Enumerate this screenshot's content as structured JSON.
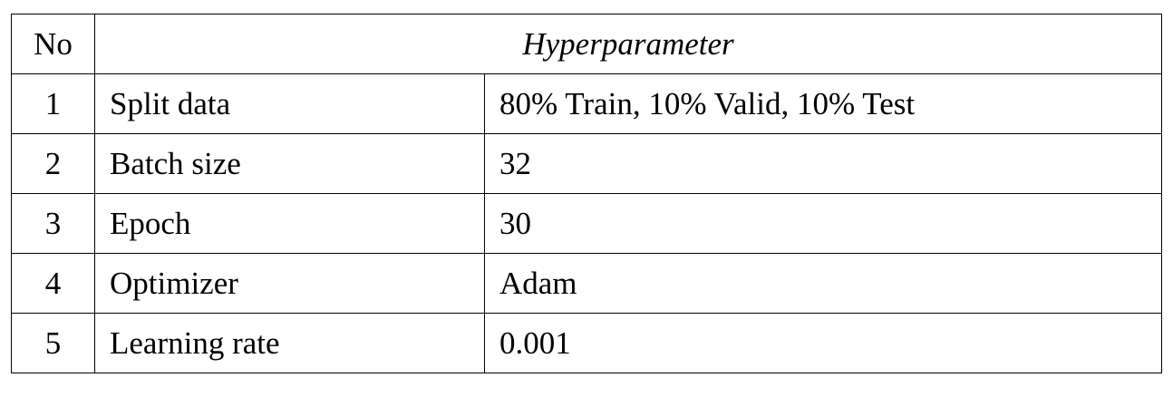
{
  "table": {
    "header": {
      "no_label": "No",
      "param_label": "Hyperparameter"
    },
    "rows": [
      {
        "no": "1",
        "name": "Split data",
        "value": "80% Train, 10% Valid, 10% Test"
      },
      {
        "no": "2",
        "name": "Batch size",
        "value": "32"
      },
      {
        "no": "3",
        "name": "Epoch",
        "value": "30"
      },
      {
        "no": "4",
        "name": "Optimizer",
        "value": "Adam"
      },
      {
        "no": "5",
        "name": "Learning rate",
        "value": "0.001"
      }
    ]
  }
}
